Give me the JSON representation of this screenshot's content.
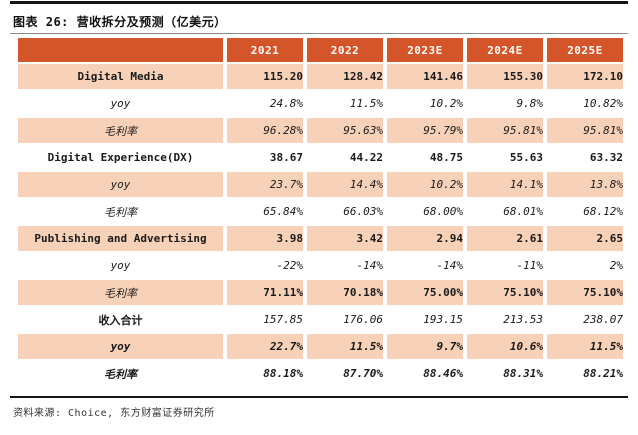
{
  "page": {
    "title": "图表 26: 营收拆分及预测（亿美元）",
    "source": "资料来源: Choice, 东方财富证券研究所"
  },
  "colors": {
    "header_bg": "#d4552a",
    "row_peach": "#f8d2b8",
    "header_text": "#ffffff"
  },
  "table": {
    "columns": [
      "2021",
      "2022",
      "2023E",
      "2024E",
      "2025E"
    ],
    "rows": [
      {
        "label": "Digital Media",
        "label_style": "bold",
        "value_style": "bold",
        "values": [
          "115.20",
          "128.42",
          "141.46",
          "155.30",
          "172.10"
        ]
      },
      {
        "label": "yoy",
        "label_style": "italic",
        "value_style": "italic",
        "values": [
          "24.8%",
          "11.5%",
          "10.2%",
          "9.8%",
          "10.82%"
        ]
      },
      {
        "label": "毛利率",
        "label_style": "italic",
        "value_style": "italic",
        "values": [
          "96.28%",
          "95.63%",
          "95.79%",
          "95.81%",
          "95.81%"
        ]
      },
      {
        "label": "Digital Experience(DX)",
        "label_style": "bold",
        "value_style": "bold",
        "values": [
          "38.67",
          "44.22",
          "48.75",
          "55.63",
          "63.32"
        ]
      },
      {
        "label": "yoy",
        "label_style": "italic",
        "value_style": "italic",
        "values": [
          "23.7%",
          "14.4%",
          "10.2%",
          "14.1%",
          "13.8%"
        ]
      },
      {
        "label": "毛利率",
        "label_style": "italic",
        "value_style": "italic",
        "values": [
          "65.84%",
          "66.03%",
          "68.00%",
          "68.01%",
          "68.12%"
        ]
      },
      {
        "label": "Publishing and Advertising",
        "label_style": "bold",
        "value_style": "bold",
        "values": [
          "3.98",
          "3.42",
          "2.94",
          "2.61",
          "2.65"
        ]
      },
      {
        "label": "yoy",
        "label_style": "italic",
        "value_style": "italic",
        "values": [
          "-22%",
          "-14%",
          "-14%",
          "-11%",
          "2%"
        ]
      },
      {
        "label": "毛利率",
        "label_style": "italic",
        "value_style": "bold",
        "values": [
          "71.11%",
          "70.18%",
          "75.00%",
          "75.10%",
          "75.10%"
        ]
      },
      {
        "label": "收入合计",
        "label_style": "bold",
        "value_style": "italic",
        "values": [
          "157.85",
          "176.06",
          "193.15",
          "213.53",
          "238.07"
        ]
      },
      {
        "label": "yoy",
        "label_style": "bold-italic",
        "value_style": "bold-italic",
        "values": [
          "22.7%",
          "11.5%",
          "9.7%",
          "10.6%",
          "11.5%"
        ]
      },
      {
        "label": "毛利率",
        "label_style": "bold-italic",
        "value_style": "bold-italic",
        "values": [
          "88.18%",
          "87.70%",
          "88.46%",
          "88.31%",
          "88.21%"
        ]
      }
    ]
  }
}
